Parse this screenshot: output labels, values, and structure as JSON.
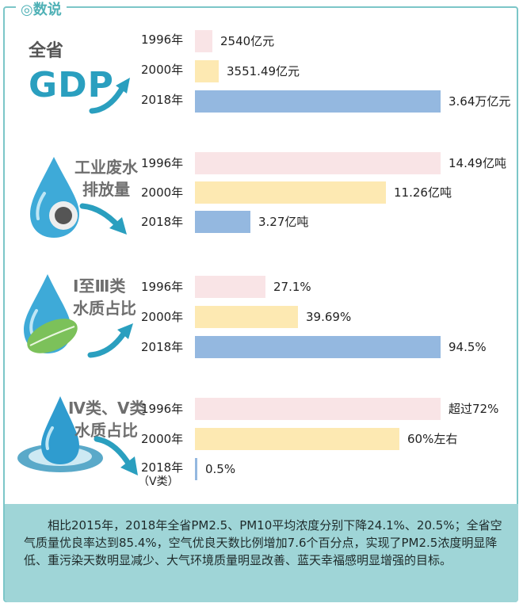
{
  "header": {
    "title": "◎数说"
  },
  "colors": {
    "y1996": "#f9e4e6",
    "y2000": "#fde9b2",
    "y2018": "#94b8e0",
    "accent": "#4fb1b6",
    "note_bg": "#9fd5d7"
  },
  "chart_data": [
    {
      "type": "bar",
      "title": "全省GDP",
      "title_lines": [
        "全省",
        "GDP"
      ],
      "categories": [
        "1996年",
        "2000年",
        "2018年"
      ],
      "values": [
        2540,
        3551.49,
        36400
      ],
      "unit": "亿元",
      "value_labels": [
        "2540亿元",
        "3551.49亿元",
        "3.64万亿元"
      ],
      "icon": "arrow-icon"
    },
    {
      "type": "bar",
      "title": "工业废水排放量",
      "title_lines": [
        "工业废水",
        "排放量"
      ],
      "categories": [
        "1996年",
        "2000年",
        "2018年"
      ],
      "values": [
        14.49,
        11.26,
        3.27
      ],
      "unit": "亿吨",
      "value_labels": [
        "14.49亿吨",
        "11.26亿吨",
        "3.27亿吨"
      ],
      "icon": "water-drop-gear-icon"
    },
    {
      "type": "bar",
      "title": "Ⅰ至Ⅲ类水质占比",
      "title_lines": [
        "Ⅰ至Ⅲ类",
        "水质占比"
      ],
      "categories": [
        "1996年",
        "2000年",
        "2018年"
      ],
      "values": [
        27.1,
        39.69,
        94.5
      ],
      "unit": "%",
      "value_labels": [
        "27.1%",
        "39.69%",
        "94.5%"
      ],
      "icon": "water-drop-leaf-icon"
    },
    {
      "type": "bar",
      "title": "Ⅳ类、Ⅴ类水质占比",
      "title_lines": [
        "Ⅳ类、Ⅴ类",
        "水质占比"
      ],
      "categories": [
        "1996年",
        "2000年",
        "2018年"
      ],
      "category_notes": [
        "",
        "",
        "（Ⅴ类）"
      ],
      "values": [
        72,
        60,
        0.5
      ],
      "unit": "%",
      "value_labels": [
        "超过72%",
        "60%左右",
        "0.5%"
      ],
      "icon": "water-drop-splash-icon"
    }
  ],
  "note": {
    "text": "相比2015年，2018年全省PM2.5、PM10平均浓度分别下降24.1%、20.5%；全省空气质量优良率达到85.4%，空气优良天数比例增加7.6个百分点，实现了PM2.5浓度明显降低、重污染天数明显减少、大气环境质量明显改善、蓝天幸福感明显增强的目标。"
  }
}
